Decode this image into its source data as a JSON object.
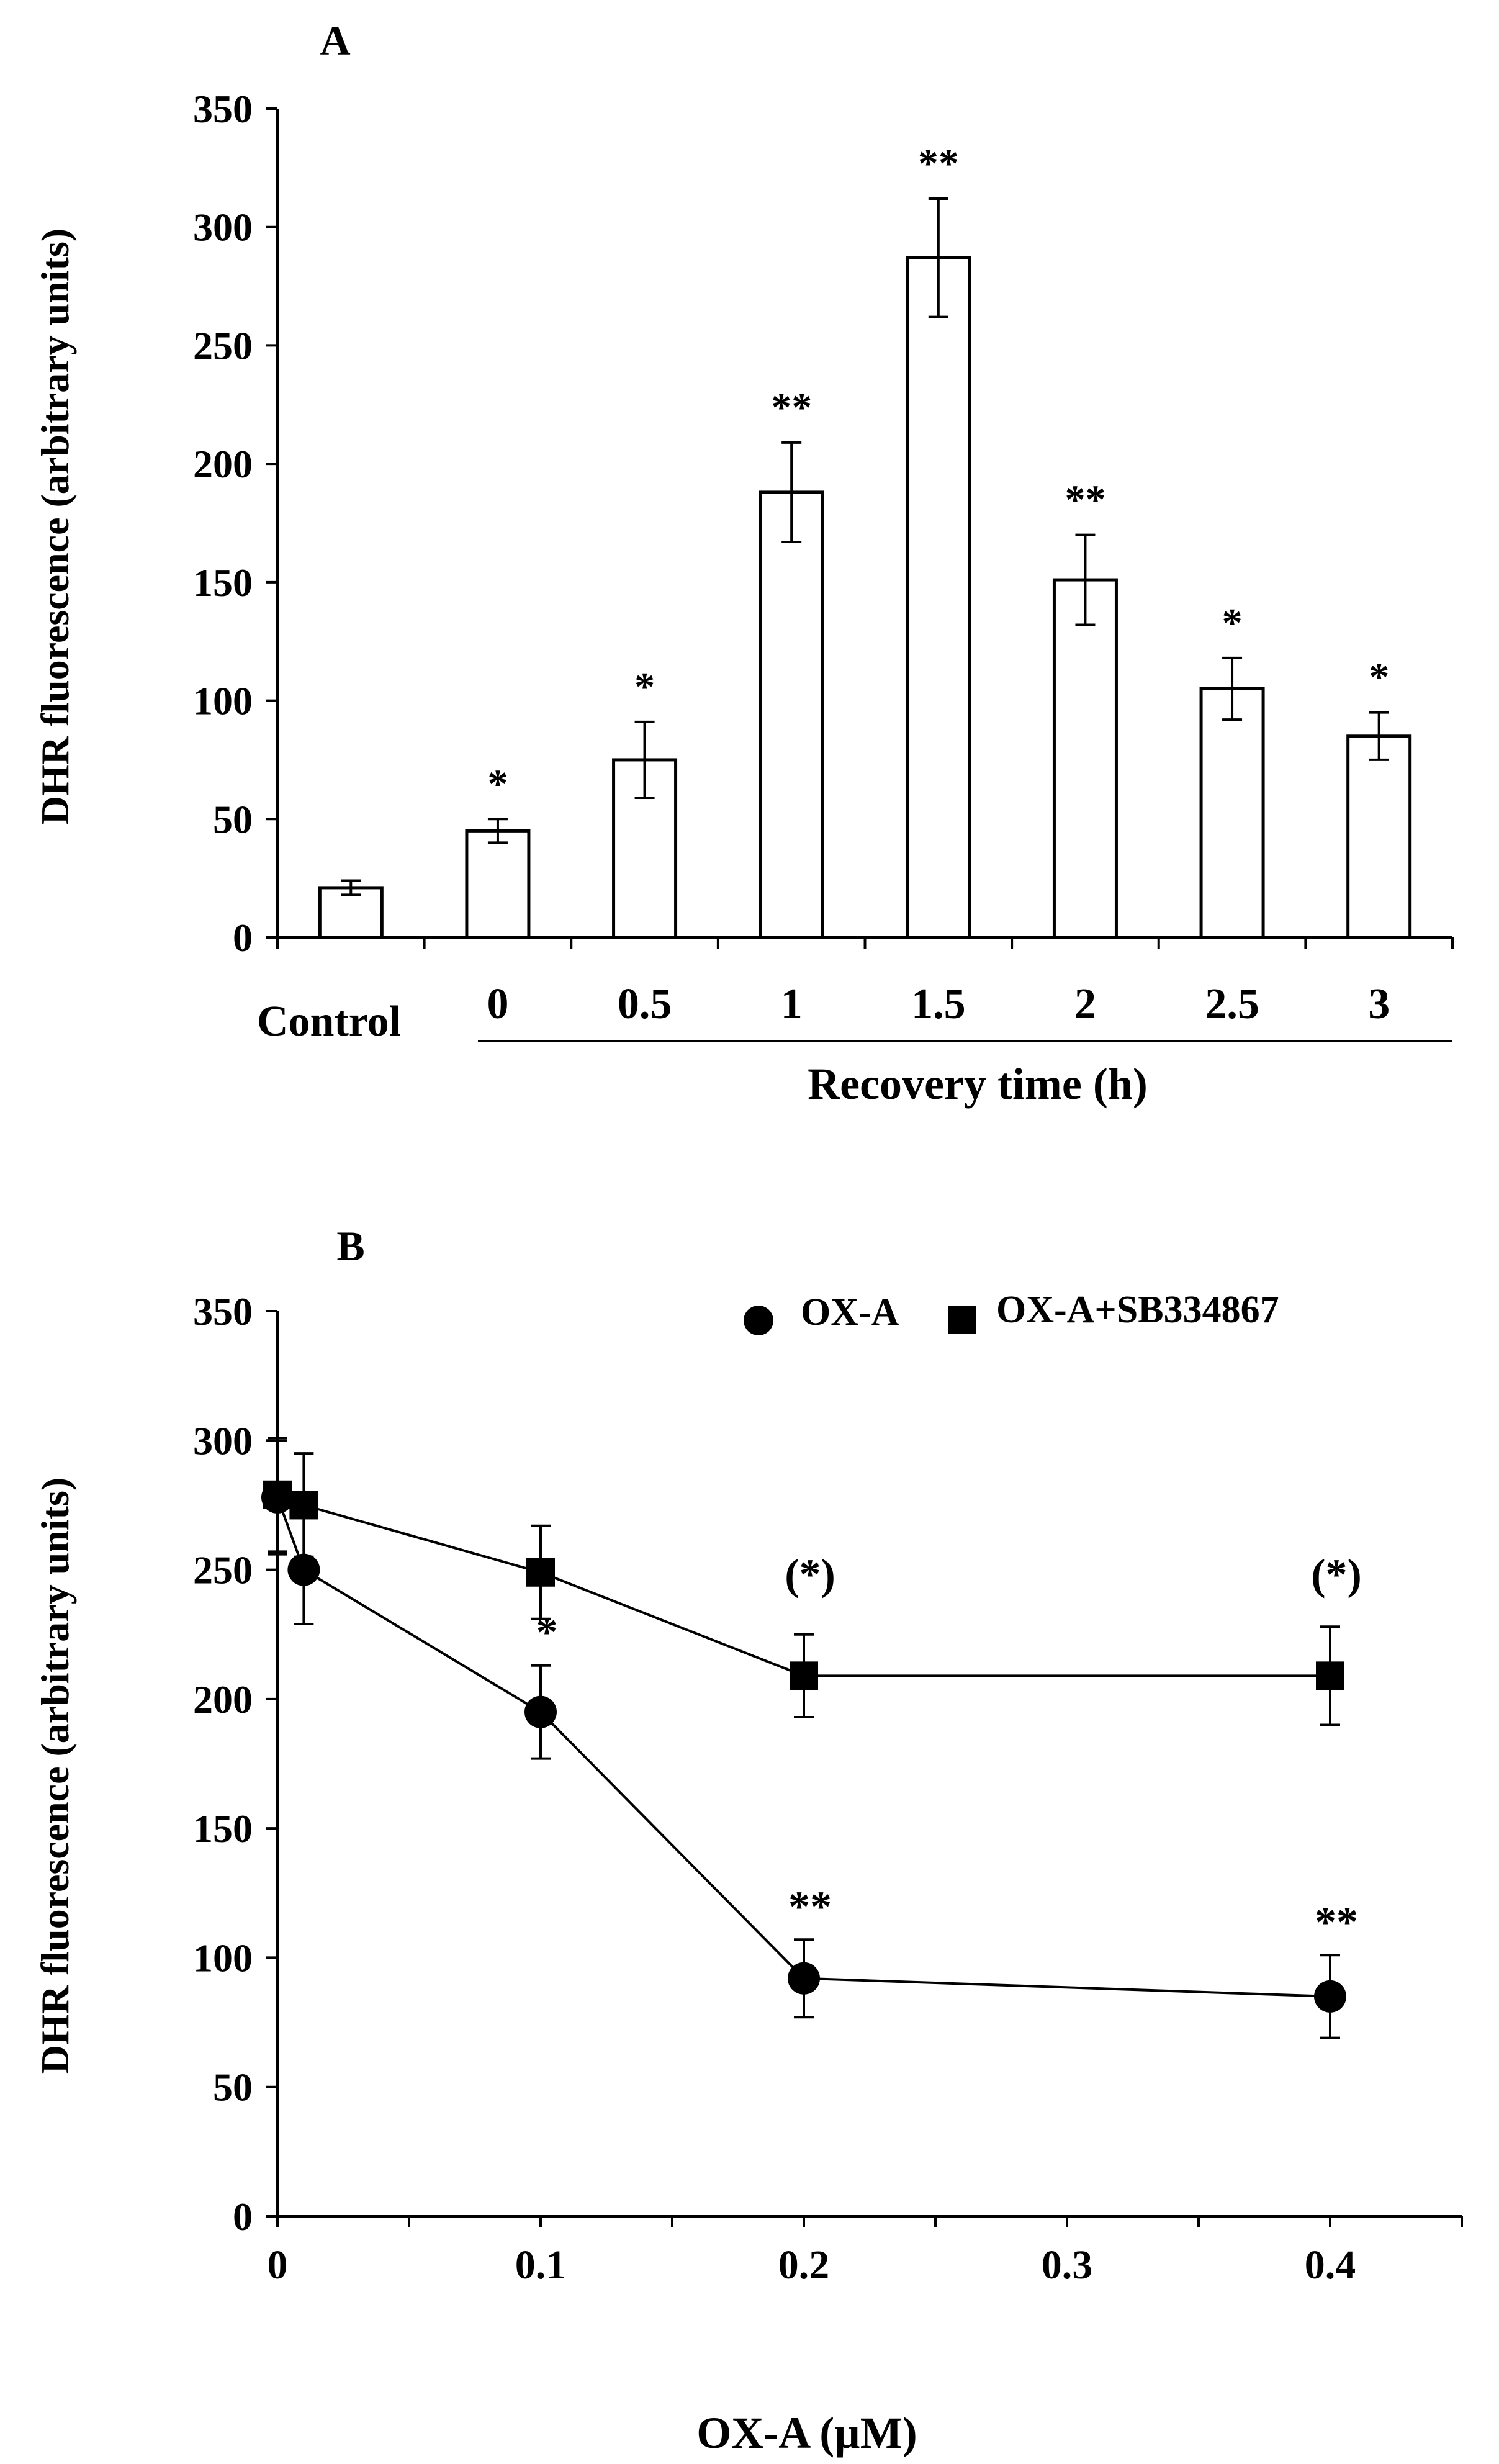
{
  "chart_data": [
    {
      "panel_label": "A",
      "type": "bar",
      "title": "",
      "ylabel": "DHR fluorescence (arbitrary  units)",
      "xlabel": "Recovery time (h)",
      "ylim": [
        0,
        350
      ],
      "yticks": [
        "0",
        "50",
        "100",
        "150",
        "200",
        "250",
        "300",
        "350"
      ],
      "categories": [
        "Control",
        "0",
        "0.5",
        "1",
        "1.5",
        "2",
        "2.5",
        "3"
      ],
      "values": [
        21,
        45,
        75,
        188,
        287,
        151,
        105,
        85
      ],
      "errors": [
        3,
        5,
        16,
        21,
        25,
        19,
        13,
        10
      ],
      "significance": [
        "",
        "*",
        "*",
        "**",
        "**",
        "**",
        "*",
        "*"
      ],
      "bar_fill": "#ffffff",
      "bar_stroke": "#000000"
    },
    {
      "panel_label": "B",
      "type": "line",
      "title": "",
      "ylabel": "DHR fluorescence (arbitrary  units)",
      "xlabel": "OX-A (µM)",
      "xlim": [
        0,
        0.45
      ],
      "ylim": [
        0,
        350
      ],
      "xticks": [
        "0",
        "0.1",
        "0.2",
        "0.3",
        "0.4"
      ],
      "yticks": [
        "0",
        "50",
        "100",
        "150",
        "200",
        "250",
        "300",
        "350"
      ],
      "legend_position": "top-right",
      "series": [
        {
          "name": "OX-A",
          "marker": "circle",
          "x": [
            0,
            0.01,
            0.1,
            0.2,
            0.4
          ],
          "values": [
            278,
            250,
            195,
            92,
            85
          ],
          "errors": [
            22,
            21,
            18,
            15,
            16
          ],
          "significance": [
            "",
            "",
            "*",
            "**",
            "**"
          ]
        },
        {
          "name": "OX-A+SB334867",
          "marker": "square",
          "x": [
            0,
            0.01,
            0.1,
            0.2,
            0.4
          ],
          "values": [
            279,
            275,
            249,
            209,
            209
          ],
          "errors": [
            22,
            20,
            18,
            16,
            19
          ],
          "significance": [
            "",
            "",
            "",
            "(*)",
            "(*)"
          ]
        }
      ]
    }
  ]
}
